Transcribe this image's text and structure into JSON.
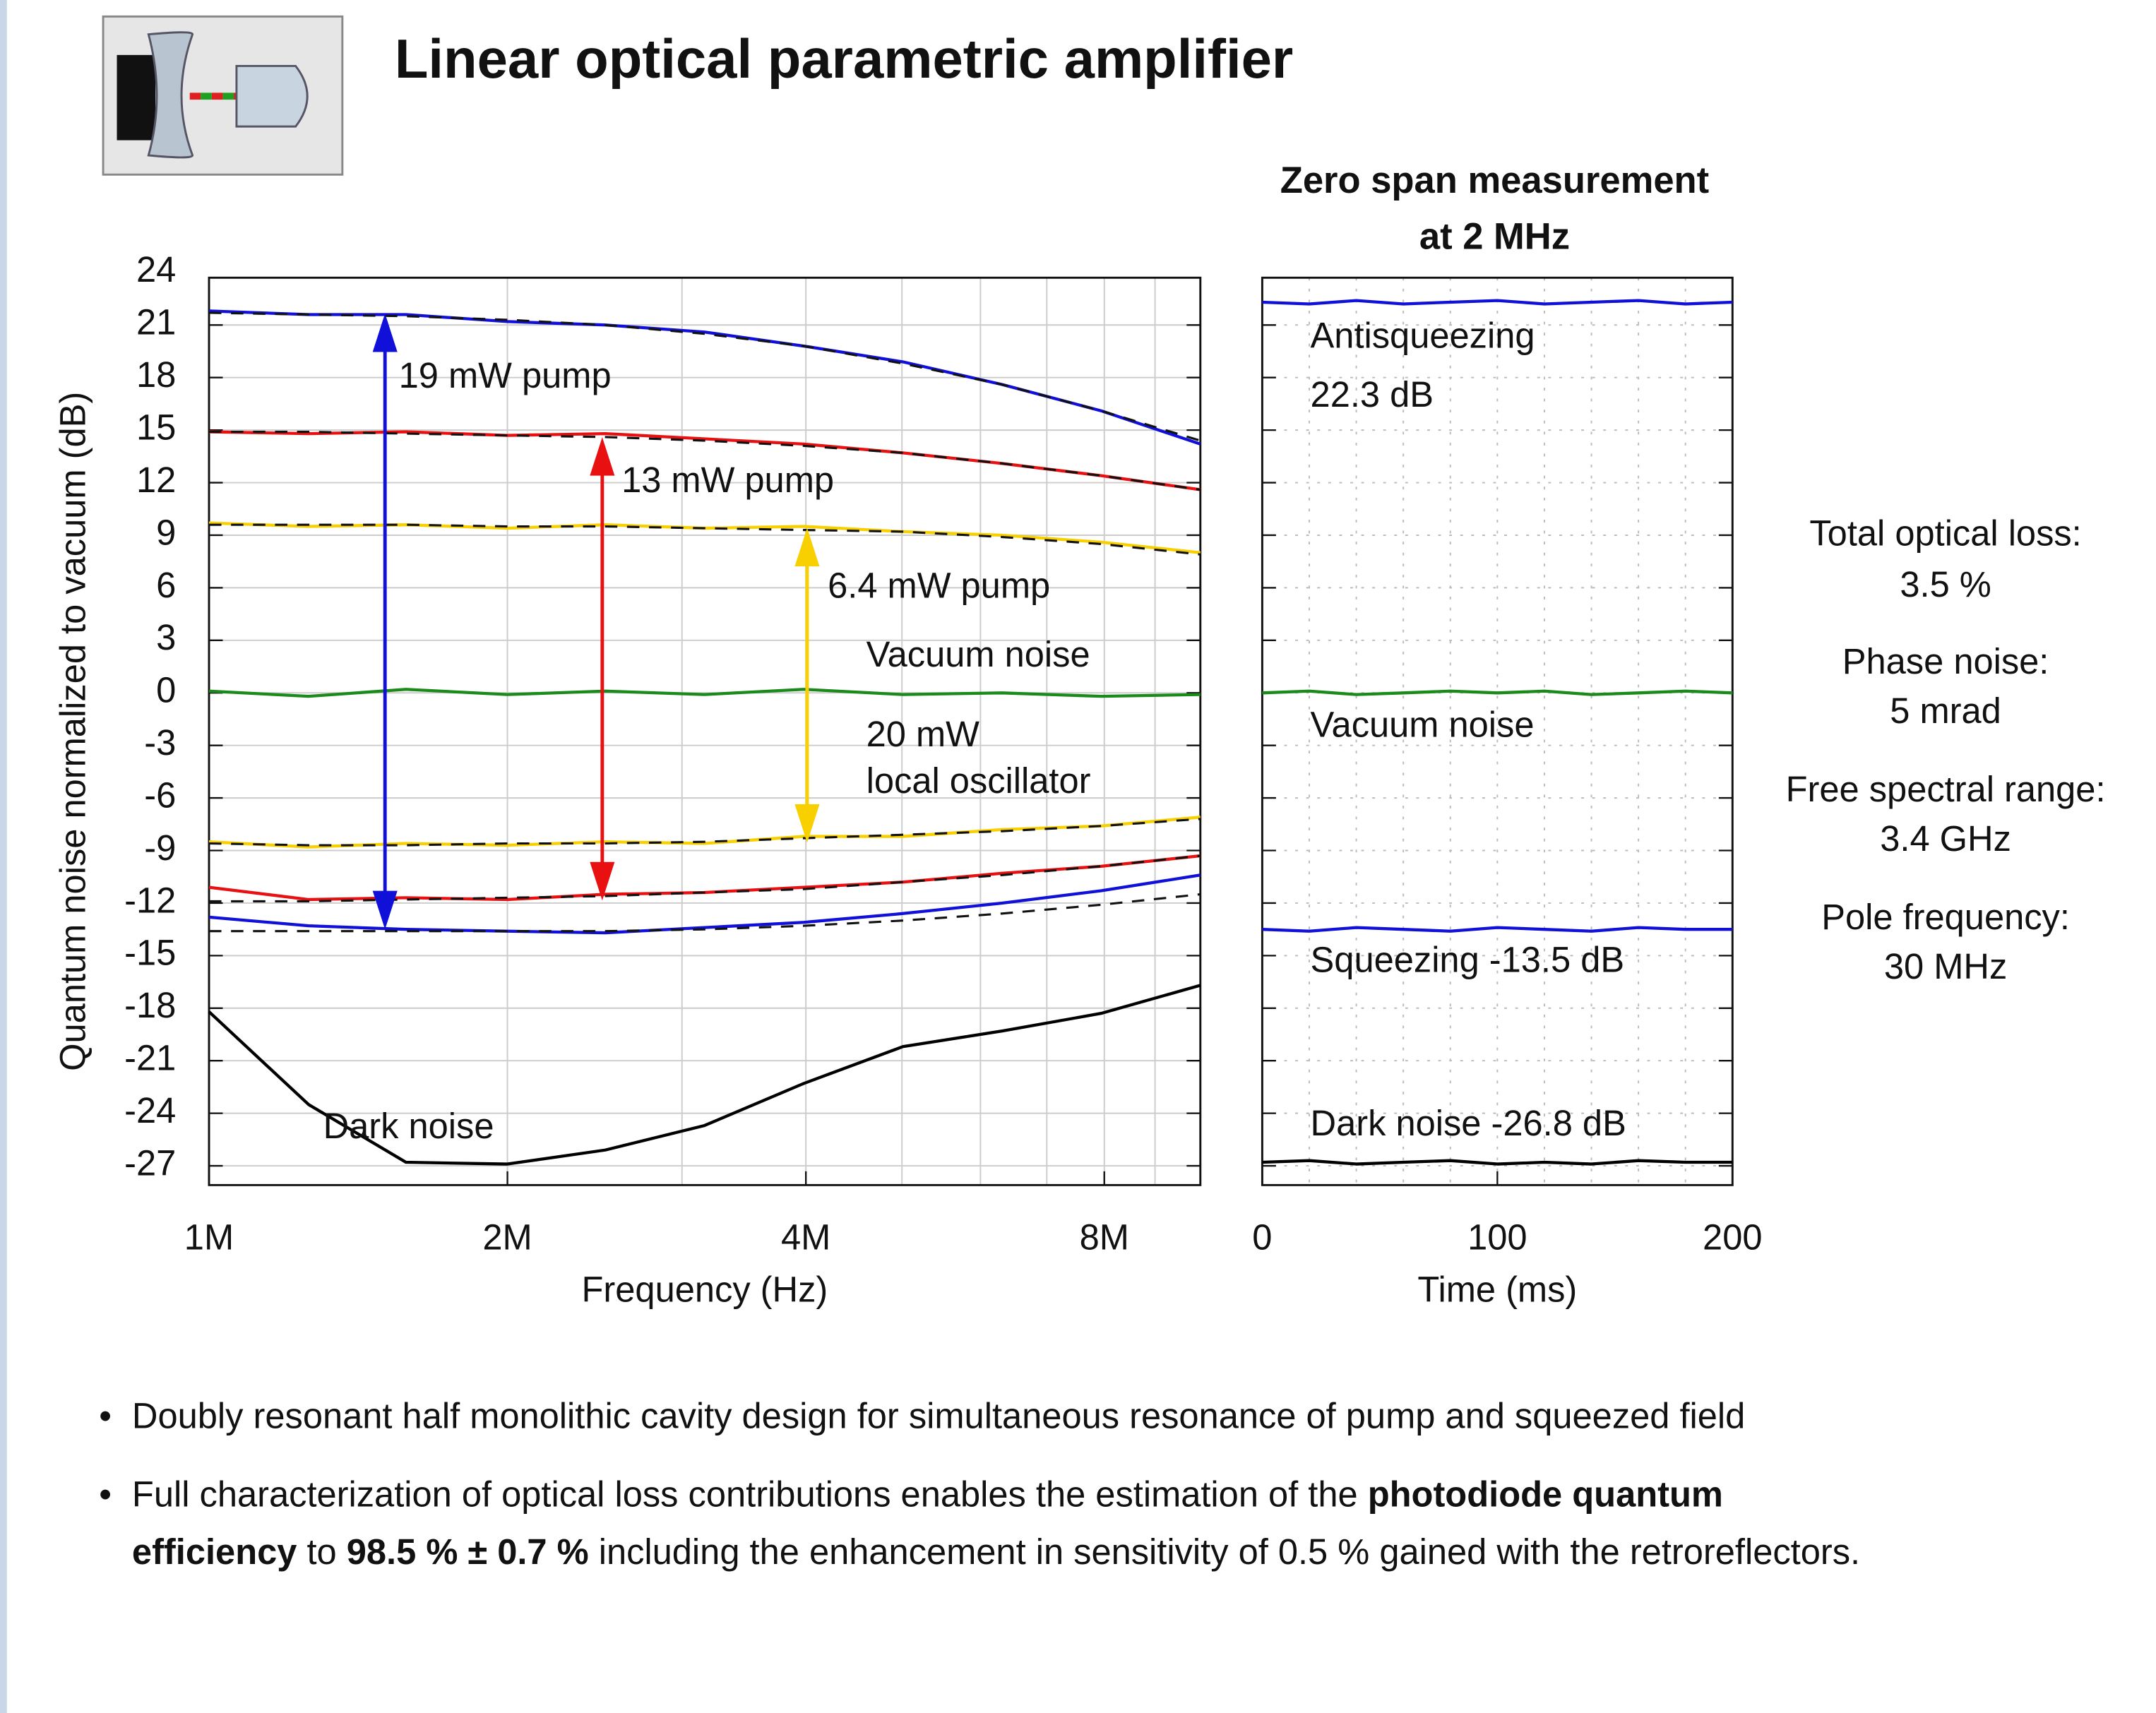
{
  "title": "Linear optical parametric amplifier",
  "chart_data": [
    {
      "type": "line",
      "y_label": "Quantum noise normalized to vacuum (dB)",
      "x_label": "Frequency (Hz)",
      "xscale": "log",
      "x": [
        1000000,
        1260000,
        1580000,
        2000000,
        2510000,
        3160000,
        3980000,
        5010000,
        6310000,
        7940000,
        10000000
      ],
      "xlim": [
        1000000,
        10000000
      ],
      "xticks": [
        {
          "value": 1000000,
          "label": "1M"
        },
        {
          "value": 2000000,
          "label": "2M"
        },
        {
          "value": 4000000,
          "label": "4M"
        },
        {
          "value": 8000000,
          "label": "8M"
        }
      ],
      "xgrid": [
        2000000,
        3000000,
        4000000,
        5000000,
        6000000,
        7000000,
        8000000,
        9000000
      ],
      "ylim": [
        -28.1,
        23.7
      ],
      "yticks": [
        24,
        21,
        18,
        15,
        12,
        9,
        6,
        3,
        0,
        -3,
        -6,
        -9,
        -12,
        -15,
        -18,
        -21,
        -24,
        -27
      ],
      "grid": true,
      "series": [
        {
          "color": "#1010d8",
          "values": [
            21.8,
            21.6,
            21.6,
            21.2,
            21.0,
            20.6,
            19.8,
            18.9,
            17.6,
            16.1,
            14.2
          ],
          "fit": [
            21.7,
            21.6,
            21.5,
            21.3,
            21.0,
            20.5,
            19.8,
            18.8,
            17.6,
            16.1,
            14.4
          ]
        },
        {
          "color": "#e81010",
          "values": [
            14.9,
            14.8,
            14.9,
            14.7,
            14.8,
            14.5,
            14.2,
            13.7,
            13.1,
            12.4,
            11.6
          ],
          "fit": [
            14.9,
            14.9,
            14.8,
            14.7,
            14.6,
            14.4,
            14.1,
            13.7,
            13.1,
            12.4,
            11.6
          ]
        },
        {
          "color": "#f8d000",
          "values": [
            9.7,
            9.5,
            9.6,
            9.4,
            9.6,
            9.4,
            9.5,
            9.2,
            9.0,
            8.6,
            8.0
          ],
          "fit": [
            9.6,
            9.6,
            9.6,
            9.5,
            9.5,
            9.4,
            9.3,
            9.2,
            8.9,
            8.5,
            7.9
          ]
        },
        {
          "color": "#1a8a1a",
          "values": [
            0.1,
            -0.2,
            0.2,
            -0.1,
            0.1,
            -0.1,
            0.2,
            -0.1,
            0.0,
            -0.2,
            -0.1
          ]
        },
        {
          "color": "#f8d000",
          "values": [
            -8.5,
            -8.8,
            -8.6,
            -8.7,
            -8.5,
            -8.6,
            -8.2,
            -8.2,
            -7.8,
            -7.6,
            -7.1
          ],
          "fit": [
            -8.6,
            -8.7,
            -8.7,
            -8.6,
            -8.6,
            -8.5,
            -8.3,
            -8.1,
            -7.9,
            -7.6,
            -7.2
          ]
        },
        {
          "color": "#e81010",
          "values": [
            -11.1,
            -11.8,
            -11.7,
            -11.8,
            -11.5,
            -11.4,
            -11.1,
            -10.8,
            -10.3,
            -9.9,
            -9.3
          ],
          "fit": [
            -11.9,
            -11.9,
            -11.8,
            -11.7,
            -11.6,
            -11.4,
            -11.2,
            -10.8,
            -10.4,
            -9.9,
            -9.3
          ]
        },
        {
          "color": "#1010d8",
          "values": [
            -12.8,
            -13.3,
            -13.5,
            -13.6,
            -13.7,
            -13.4,
            -13.1,
            -12.6,
            -12.0,
            -11.3,
            -10.4
          ],
          "fit": [
            -13.6,
            -13.6,
            -13.6,
            -13.6,
            -13.6,
            -13.5,
            -13.3,
            -13.0,
            -12.6,
            -12.1,
            -11.5
          ]
        },
        {
          "color": "#000000",
          "values": [
            -18.2,
            -23.5,
            -26.8,
            -26.9,
            -26.1,
            -24.7,
            -22.3,
            -20.2,
            -19.3,
            -18.3,
            -16.7
          ]
        }
      ],
      "annotations": [
        "19 mW pump",
        "13 mW pump",
        "6.4 mW pump",
        "Vacuum noise",
        "20 mW",
        "local oscillator",
        "Dark noise"
      ]
    },
    {
      "type": "line",
      "title": "Zero span measurement",
      "subtitle": "at 2 MHz",
      "x_label": "Time (ms)",
      "x": [
        0,
        20,
        40,
        60,
        80,
        100,
        120,
        140,
        160,
        180,
        200
      ],
      "xlim": [
        0,
        200
      ],
      "xticks": [
        0,
        100,
        200
      ],
      "xgrid": [
        20,
        40,
        60,
        80,
        100,
        120,
        140,
        160,
        180
      ],
      "ylim": [
        -28.1,
        23.7
      ],
      "yticks": [
        24,
        21,
        18,
        15,
        12,
        9,
        6,
        3,
        0,
        -3,
        -6,
        -9,
        -12,
        -15,
        -18,
        -21,
        -24,
        -27
      ],
      "series": [
        {
          "color": "#1010d8",
          "values": [
            22.3,
            22.2,
            22.4,
            22.2,
            22.3,
            22.4,
            22.2,
            22.3,
            22.4,
            22.2,
            22.3
          ]
        },
        {
          "color": "#1a8a1a",
          "values": [
            0.0,
            0.1,
            -0.1,
            0.0,
            0.1,
            0.0,
            0.1,
            -0.1,
            0.0,
            0.1,
            0.0
          ]
        },
        {
          "color": "#1010d8",
          "values": [
            -13.5,
            -13.6,
            -13.4,
            -13.5,
            -13.6,
            -13.4,
            -13.5,
            -13.6,
            -13.4,
            -13.5,
            -13.5
          ]
        },
        {
          "color": "#000000",
          "values": [
            -26.8,
            -26.7,
            -26.9,
            -26.8,
            -26.7,
            -26.9,
            -26.8,
            -26.9,
            -26.7,
            -26.8,
            -26.8
          ]
        }
      ],
      "annotations": [
        "Antisqueezing",
        "22.3 dB",
        "Vacuum noise",
        "Squeezing -13.5 dB",
        "Dark noise -26.8 dB"
      ]
    }
  ],
  "side_notes": [
    "Total optical loss:",
    "3.5 %",
    "Phase noise:",
    "5 mrad",
    "Free spectral range:",
    "3.4 GHz",
    "Pole frequency:",
    "30 MHz"
  ],
  "bullets": [
    {
      "marker": "•",
      "lines": [
        [
          {
            "text": "Doubly resonant half monolithic cavity design for simultaneous resonance of pump and squeezed field",
            "bold": false
          }
        ]
      ]
    },
    {
      "marker": "•",
      "lines": [
        [
          {
            "text": "Full characterization of optical loss contributions enables the estimation of the ",
            "bold": false
          },
          {
            "text": "photodiode quantum",
            "bold": true
          }
        ],
        [
          {
            "text": "efficiency",
            "bold": true
          },
          {
            "text": " to ",
            "bold": false
          },
          {
            "text": "98.5 % ± 0.7 %",
            "bold": true
          },
          {
            "text": " including the enhancement in sensitivity of 0.5 % gained with the retroreflectors.",
            "bold": false
          }
        ]
      ]
    }
  ]
}
